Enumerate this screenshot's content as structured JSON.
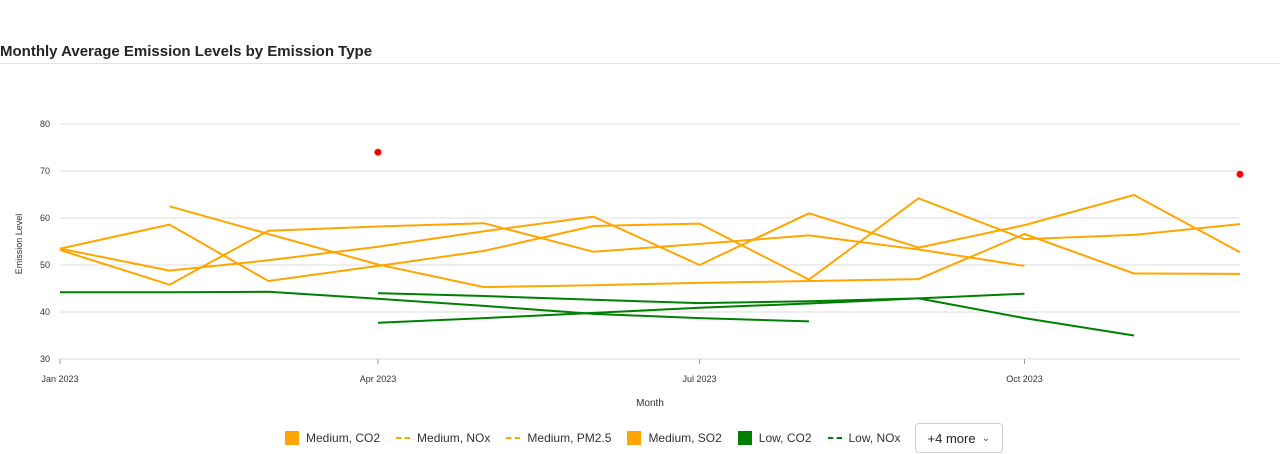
{
  "chart_data": {
    "type": "line",
    "title": "Monthly Average Emission Levels by Emission Type",
    "xlabel": "Month",
    "ylabel": "Emission Level",
    "ylim": [
      30,
      80
    ],
    "yticks": [
      30,
      40,
      50,
      60,
      70,
      80
    ],
    "xticks": [
      "Jan 2023",
      "Apr 2023",
      "Jul 2023",
      "Oct 2023"
    ],
    "grid": true,
    "legend_position": "bottom",
    "series": [
      {
        "name": "Medium, CO2",
        "color": "#FFA500",
        "dash": false,
        "points": [
          [
            "2023-01-01",
            53.5
          ],
          [
            "2023-02-01",
            48.8
          ],
          [
            "2023-03-01",
            51.0
          ],
          [
            "2023-04-01",
            53.9
          ],
          [
            "2023-05-01",
            57.2
          ],
          [
            "2023-06-01",
            60.3
          ],
          [
            "2023-07-01",
            50.0
          ],
          [
            "2023-08-01",
            61.0
          ],
          [
            "2023-09-01",
            53.7
          ],
          [
            "2023-10-01",
            58.5
          ],
          [
            "2023-11-01",
            64.9
          ],
          [
            "2023-12-01",
            52.7
          ]
        ]
      },
      {
        "name": "Medium, NOx",
        "color": "#FFA500",
        "dash": true,
        "points": [
          [
            "2023-01-01",
            53.5
          ],
          [
            "2023-02-01",
            58.6
          ],
          [
            "2023-03-01",
            46.6
          ],
          [
            "2023-04-01",
            49.8
          ],
          [
            "2023-05-01",
            53.0
          ],
          [
            "2023-06-01",
            58.3
          ],
          [
            "2023-07-01",
            58.8
          ],
          [
            "2023-08-01",
            46.9
          ],
          [
            "2023-09-01",
            64.2
          ],
          [
            "2023-10-01",
            55.5
          ],
          [
            "2023-11-01",
            56.4
          ],
          [
            "2023-12-01",
            58.7
          ]
        ]
      },
      {
        "name": "Medium, PM2.5",
        "color": "#FFA500",
        "dash": true,
        "points": [
          [
            "2023-01-01",
            53.2
          ],
          [
            "2023-02-01",
            45.8
          ],
          [
            "2023-03-01",
            57.3
          ],
          [
            "2023-04-01",
            58.2
          ],
          [
            "2023-05-01",
            58.9
          ],
          [
            "2023-06-01",
            52.8
          ],
          [
            "2023-07-01",
            54.5
          ],
          [
            "2023-08-01",
            56.3
          ],
          [
            "2023-09-01",
            53.3
          ],
          [
            "2023-10-01",
            49.8
          ]
        ]
      },
      {
        "name": "Medium, SO2",
        "color": "#FFA500",
        "dash": false,
        "points": [
          [
            "2023-02-01",
            62.5
          ],
          [
            "2023-03-01",
            56.6
          ],
          [
            "2023-04-01",
            50.1
          ],
          [
            "2023-05-01",
            45.3
          ],
          [
            "2023-06-01",
            45.7
          ],
          [
            "2023-07-01",
            46.2
          ],
          [
            "2023-08-01",
            46.6
          ],
          [
            "2023-09-01",
            47.0
          ],
          [
            "2023-10-01",
            56.6
          ],
          [
            "2023-11-01",
            48.2
          ],
          [
            "2023-12-01",
            48.1
          ]
        ]
      },
      {
        "name": "Low, CO2",
        "color": "#008000",
        "dash": false,
        "points": [
          [
            "2023-01-01",
            44.2
          ],
          [
            "2023-02-01",
            44.2
          ],
          [
            "2023-03-01",
            44.3
          ],
          [
            "2023-04-01",
            42.8
          ],
          [
            "2023-05-01",
            41.3
          ],
          [
            "2023-06-01",
            39.6
          ],
          [
            "2023-07-01",
            38.7
          ],
          [
            "2023-08-01",
            38.0
          ]
        ]
      },
      {
        "name": "Low, NOx",
        "color": "#008000",
        "dash": true,
        "points": [
          [
            "2023-04-01",
            44.0
          ],
          [
            "2023-05-01",
            43.4
          ],
          [
            "2023-06-01",
            42.6
          ],
          [
            "2023-07-01",
            41.9
          ],
          [
            "2023-08-01",
            42.3
          ],
          [
            "2023-09-01",
            42.9
          ],
          [
            "2023-10-01",
            38.7
          ],
          [
            "2023-11-01",
            35.0
          ]
        ]
      },
      {
        "name": "",
        "color": "#008000",
        "dash": false,
        "points": [
          [
            "2023-04-01",
            37.7
          ],
          [
            "2023-05-01",
            38.7
          ],
          [
            "2023-06-01",
            39.8
          ],
          [
            "2023-07-01",
            40.9
          ],
          [
            "2023-08-01",
            41.8
          ],
          [
            "2023-09-01",
            42.9
          ],
          [
            "2023-10-01",
            43.9
          ]
        ]
      },
      {
        "name": "",
        "color": "#FF0000",
        "dash": false,
        "markers_only": true,
        "points": [
          [
            "2023-04-01",
            74.0
          ],
          [
            "2023-12-01",
            69.3
          ]
        ]
      }
    ]
  },
  "legend": {
    "items": [
      {
        "label": "Medium, CO2",
        "color": "#FFA500",
        "style": "solid",
        "icon": "square-swatch-icon"
      },
      {
        "label": "Medium, NOx",
        "color": "#FFA500",
        "style": "dashed",
        "icon": "dashed-line-icon"
      },
      {
        "label": "Medium, PM2.5",
        "color": "#FFA500",
        "style": "dashed",
        "icon": "dashed-line-icon"
      },
      {
        "label": "Medium, SO2",
        "color": "#FFA500",
        "style": "solid",
        "icon": "square-swatch-icon"
      },
      {
        "label": "Low, CO2",
        "color": "#008000",
        "style": "solid",
        "icon": "square-swatch-icon"
      },
      {
        "label": "Low, NOx",
        "color": "#008000",
        "style": "dashed",
        "icon": "dashed-line-icon"
      }
    ],
    "more_label": "+4 more",
    "more_icon": "chevron-down-icon"
  }
}
